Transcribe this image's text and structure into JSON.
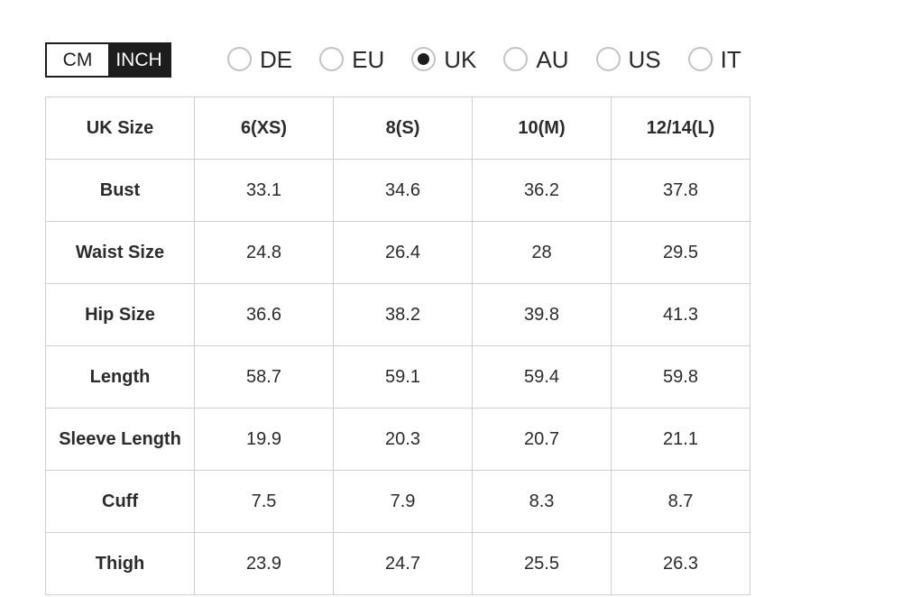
{
  "unit_toggle": {
    "cm": {
      "label": "CM",
      "selected": false
    },
    "inch": {
      "label": "INCH",
      "selected": true
    }
  },
  "regions": {
    "options": [
      {
        "label": "DE",
        "selected": false
      },
      {
        "label": "EU",
        "selected": false
      },
      {
        "label": "UK",
        "selected": true
      },
      {
        "label": "AU",
        "selected": false
      },
      {
        "label": "US",
        "selected": false
      },
      {
        "label": "IT",
        "selected": false
      }
    ]
  },
  "size_table": {
    "header": [
      "UK Size",
      "6(XS)",
      "8(S)",
      "10(M)",
      "12/14(L)"
    ],
    "rows": [
      {
        "label": "Bust",
        "values": [
          "33.1",
          "34.6",
          "36.2",
          "37.8"
        ]
      },
      {
        "label": "Waist Size",
        "values": [
          "24.8",
          "26.4",
          "28",
          "29.5"
        ]
      },
      {
        "label": "Hip Size",
        "values": [
          "36.6",
          "38.2",
          "39.8",
          "41.3"
        ]
      },
      {
        "label": "Length",
        "values": [
          "58.7",
          "59.1",
          "59.4",
          "59.8"
        ]
      },
      {
        "label": "Sleeve Length",
        "values": [
          "19.9",
          "20.3",
          "20.7",
          "21.1"
        ]
      },
      {
        "label": "Cuff",
        "values": [
          "7.5",
          "7.9",
          "8.3",
          "8.7"
        ]
      },
      {
        "label": "Thigh",
        "values": [
          "23.9",
          "24.7",
          "25.5",
          "26.3"
        ]
      }
    ]
  },
  "colors": {
    "toggle_active_bg": "#1d1d1d",
    "toggle_active_text": "#ffffff",
    "table_border": "#cfcfcf",
    "text": "#2b2b2b",
    "radio_ring": "#c3c3c3",
    "radio_dot": "#1d1d1d"
  }
}
